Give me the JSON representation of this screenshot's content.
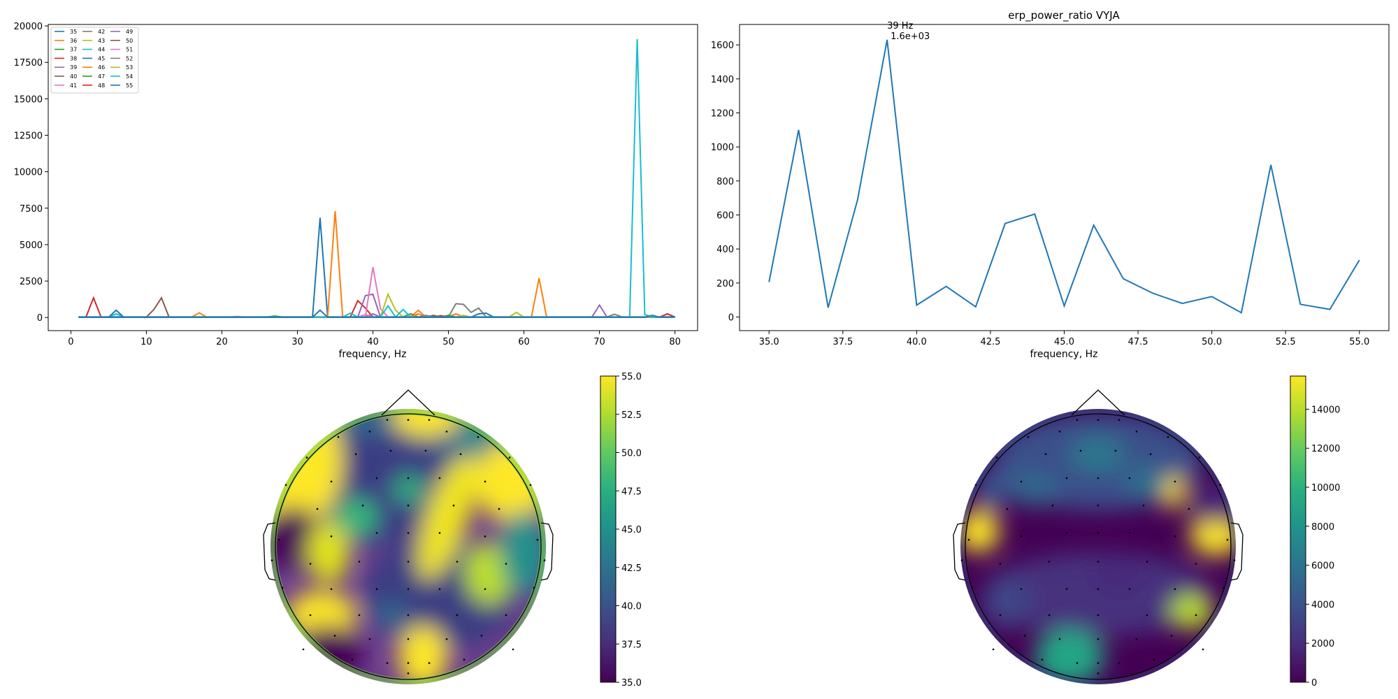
{
  "colors": {
    "tab10": [
      "#1f77b4",
      "#ff7f0e",
      "#2ca02c",
      "#d62728",
      "#9467bd",
      "#8c564b",
      "#e377c2",
      "#7f7f7f",
      "#bcbd22",
      "#17becf"
    ],
    "axis": "#000000",
    "head": "#000000"
  },
  "chart_data": [
    {
      "type": "line",
      "title": "",
      "xlabel": "frequency, Hz",
      "ylabel": "",
      "xlim": [
        -3,
        83
      ],
      "ylim": [
        -900,
        20100
      ],
      "xticks": [
        0,
        10,
        20,
        30,
        40,
        50,
        60,
        70,
        80
      ],
      "yticks": [
        0,
        2500,
        5000,
        7500,
        10000,
        12500,
        15000,
        17500,
        20000
      ],
      "legend_position": "top-left",
      "legend_columns": 3,
      "x_range": [
        1,
        80
      ],
      "series": [
        {
          "name": "35",
          "peaks": [
            [
              33,
              6850
            ]
          ],
          "base": 30
        },
        {
          "name": "36",
          "peaks": [
            [
              35,
              7300
            ],
            [
              62,
              2700
            ],
            [
              17,
              320
            ],
            [
              46,
              500
            ]
          ],
          "base": 30
        },
        {
          "name": "37",
          "peaks": [
            [
              27,
              100
            ],
            [
              45,
              250
            ]
          ],
          "base": 40
        },
        {
          "name": "38",
          "peaks": [
            [
              3,
              1350
            ],
            [
              38,
              1150
            ],
            [
              39,
              650
            ],
            [
              79,
              250
            ]
          ],
          "base": 30
        },
        {
          "name": "39",
          "peaks": [
            [
              39,
              1500
            ],
            [
              40,
              1600
            ],
            [
              70,
              850
            ]
          ],
          "base": 30
        },
        {
          "name": "40",
          "peaks": [
            [
              12,
              1350
            ],
            [
              11,
              550
            ],
            [
              48,
              120
            ]
          ],
          "base": 30
        },
        {
          "name": "41",
          "peaks": [
            [
              40,
              3450
            ],
            [
              41,
              600
            ],
            [
              22,
              80
            ]
          ],
          "base": 30
        },
        {
          "name": "42",
          "peaks": [
            [
              51,
              950
            ],
            [
              52,
              900
            ],
            [
              53,
              350
            ],
            [
              54,
              650
            ],
            [
              72,
              220
            ]
          ],
          "base": 40
        },
        {
          "name": "43",
          "peaks": [
            [
              42,
              1600
            ],
            [
              43,
              500
            ],
            [
              59,
              350
            ]
          ],
          "base": 30
        },
        {
          "name": "44",
          "peaks": [
            [
              42,
              800
            ],
            [
              44,
              550
            ],
            [
              37,
              300
            ],
            [
              6,
              250
            ]
          ],
          "base": 30
        },
        {
          "name": "45",
          "peaks": [
            [
              6,
              500
            ],
            [
              55,
              300
            ],
            [
              54,
              250
            ]
          ],
          "base": 20
        },
        {
          "name": "46",
          "peaks": [
            [
              46,
              250
            ],
            [
              51,
              250
            ]
          ],
          "base": 30
        },
        {
          "name": "47",
          "peaks": [
            [
              50,
              150
            ]
          ],
          "base": 30
        },
        {
          "name": "48",
          "peaks": [
            [
              49,
              120
            ]
          ],
          "base": 30
        },
        {
          "name": "49",
          "peaks": [
            [
              40,
              250
            ]
          ],
          "base": 30
        },
        {
          "name": "50",
          "peaks": [
            [
              48,
              150
            ]
          ],
          "base": 30
        },
        {
          "name": "51",
          "peaks": [
            [
              39,
              200
            ]
          ],
          "base": 30
        },
        {
          "name": "52",
          "peaks": [
            [
              47,
              150
            ]
          ],
          "base": 30
        },
        {
          "name": "53",
          "peaks": [
            [
              52,
              150
            ]
          ],
          "base": 30
        },
        {
          "name": "54",
          "peaks": [
            [
              75,
              19100
            ],
            [
              76,
              200
            ]
          ],
          "base": 30
        },
        {
          "name": "55",
          "peaks": [
            [
              33,
              500
            ],
            [
              77,
              150
            ],
            [
              80,
              60
            ]
          ],
          "base": 20
        }
      ]
    },
    {
      "type": "line",
      "title": "erp_power_ratio VYJA",
      "xlabel": "frequency, Hz",
      "ylabel": "",
      "xlim": [
        34,
        56
      ],
      "ylim": [
        -80,
        1720
      ],
      "xticks": [
        35.0,
        37.5,
        40.0,
        42.5,
        45.0,
        47.5,
        50.0,
        52.5,
        55.0
      ],
      "yticks": [
        0,
        200,
        400,
        600,
        800,
        1000,
        1200,
        1400,
        1600
      ],
      "series": [
        {
          "x": [
            35,
            36,
            37,
            38,
            39,
            40,
            41,
            42,
            43,
            44,
            45,
            46,
            47,
            48,
            49,
            50,
            51,
            52,
            53,
            54,
            55
          ],
          "y": [
            205,
            1100,
            55,
            690,
            1630,
            70,
            180,
            60,
            550,
            605,
            65,
            540,
            225,
            140,
            80,
            120,
            25,
            895,
            75,
            45,
            335
          ],
          "color": "#1f77b4"
        }
      ],
      "annotation": {
        "text_line1": "39 Hz",
        "text_line2": "1.6e+03",
        "x": 39,
        "y": 1630
      }
    },
    {
      "type": "heatmap",
      "title": "",
      "colormap": "viridis",
      "colorbar_range": [
        35.0,
        55.0
      ],
      "colorbar_ticks": [
        "35.0",
        "37.5",
        "40.0",
        "42.5",
        "45.0",
        "47.5",
        "50.0",
        "52.5",
        "55.0"
      ],
      "colorbar_values": [
        35.0,
        37.5,
        40.0,
        42.5,
        45.0,
        47.5,
        50.0,
        52.5,
        55.0
      ]
    },
    {
      "type": "heatmap",
      "title": "",
      "colormap": "viridis",
      "colorbar_range": [
        0,
        15700
      ],
      "colorbar_ticks": [
        "0",
        "2000",
        "4000",
        "6000",
        "8000",
        "10000",
        "12000",
        "14000"
      ],
      "colorbar_values": [
        0,
        2000,
        4000,
        6000,
        8000,
        10000,
        12000,
        14000
      ]
    }
  ]
}
